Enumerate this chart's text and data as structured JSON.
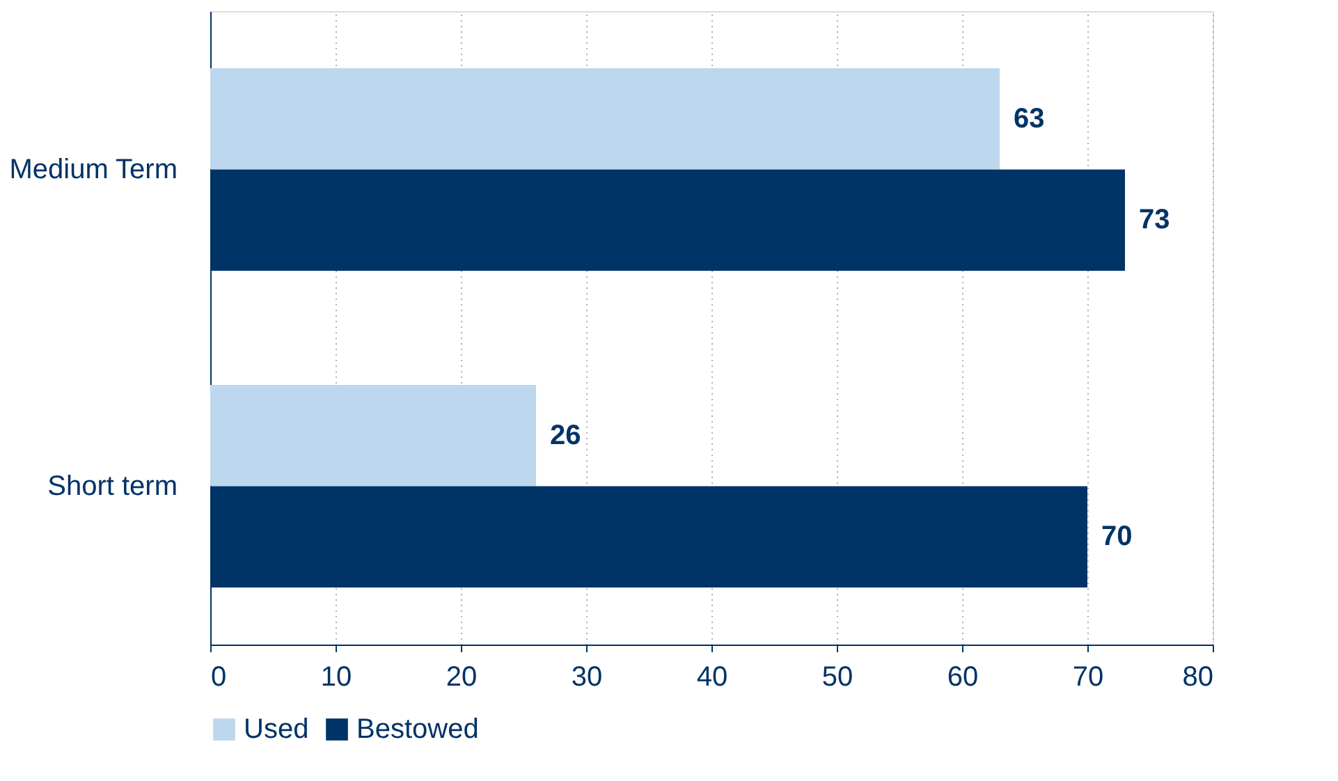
{
  "chart_data": {
    "type": "bar",
    "orientation": "horizontal",
    "categories": [
      "Medium Term",
      "Short term"
    ],
    "series": [
      {
        "name": "Used",
        "color": "#bdd7ee",
        "values": [
          63,
          26
        ]
      },
      {
        "name": "Bestowed",
        "color": "#003366",
        "values": [
          73,
          70
        ]
      }
    ],
    "xlim": [
      0,
      80
    ],
    "xticks": [
      0,
      10,
      20,
      30,
      40,
      50,
      60,
      70,
      80
    ],
    "grid": "x",
    "legend": "bottom",
    "data_labels": true
  }
}
